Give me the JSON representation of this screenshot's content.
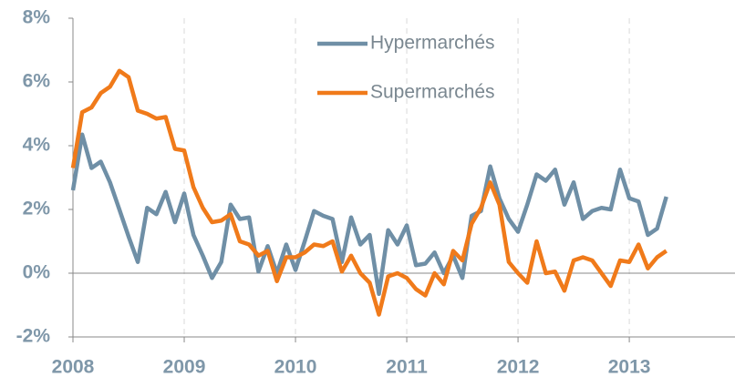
{
  "chart_data": {
    "type": "line",
    "x": [
      2008,
      2008.083,
      2008.167,
      2008.25,
      2008.333,
      2008.417,
      2008.5,
      2008.583,
      2008.667,
      2008.75,
      2008.833,
      2008.917,
      2009,
      2009.083,
      2009.167,
      2009.25,
      2009.333,
      2009.417,
      2009.5,
      2009.583,
      2009.667,
      2009.75,
      2009.833,
      2009.917,
      2010,
      2010.083,
      2010.167,
      2010.25,
      2010.333,
      2010.417,
      2010.5,
      2010.583,
      2010.667,
      2010.75,
      2010.833,
      2010.917,
      2011,
      2011.083,
      2011.167,
      2011.25,
      2011.333,
      2011.417,
      2011.5,
      2011.583,
      2011.667,
      2011.75,
      2011.833,
      2011.917,
      2012,
      2012.083,
      2012.167,
      2012.25,
      2012.333,
      2012.417,
      2012.5,
      2012.583,
      2012.667,
      2012.75,
      2012.833,
      2012.917,
      2013,
      2013.083,
      2013.167,
      2013.25,
      2013.333
    ],
    "series": [
      {
        "name": "Hypermarchés",
        "color": "#6f8fa6",
        "values": [
          2.6,
          4.35,
          3.3,
          3.5,
          2.85,
          2.0,
          1.15,
          0.35,
          2.05,
          1.85,
          2.55,
          1.6,
          2.5,
          1.2,
          0.55,
          -0.15,
          0.35,
          2.15,
          1.7,
          1.75,
          0.05,
          0.85,
          0,
          0.9,
          0.1,
          1.0,
          1.95,
          1.8,
          1.7,
          0.35,
          1.75,
          0.9,
          1.2,
          -0.65,
          1.35,
          0.9,
          1.5,
          0.25,
          0.3,
          0.65,
          0,
          0.55,
          -0.15,
          1.8,
          1.95,
          3.35,
          2.35,
          1.7,
          1.3,
          2.15,
          3.1,
          2.9,
          3.25,
          2.15,
          2.85,
          1.7,
          1.95,
          2.05,
          2.0,
          3.25,
          2.35,
          2.25,
          1.2,
          1.4,
          2.4
        ]
      },
      {
        "name": "Supermarchés",
        "color": "#f07a1a",
        "values": [
          3.3,
          5.05,
          5.2,
          5.65,
          5.85,
          6.35,
          6.15,
          5.1,
          5.0,
          4.85,
          4.9,
          3.9,
          3.85,
          2.7,
          2.05,
          1.6,
          1.65,
          1.85,
          1.0,
          0.9,
          0.55,
          0.7,
          -0.25,
          0.5,
          0.5,
          0.65,
          0.9,
          0.85,
          1.0,
          0.05,
          0.55,
          0,
          -0.3,
          -1.3,
          -0.1,
          0,
          -0.15,
          -0.5,
          -0.7,
          0,
          -0.35,
          0.7,
          0.4,
          1.55,
          2.05,
          2.85,
          2.15,
          0.35,
          0,
          -0.3,
          1.0,
          0,
          0.05,
          -0.55,
          0.4,
          0.5,
          0.4,
          0,
          -0.4,
          0.4,
          0.35,
          0.9,
          0.15,
          0.5,
          0.7
        ]
      }
    ],
    "xlim": [
      2008,
      2013.95
    ],
    "xticks": [
      2008,
      2009,
      2010,
      2011,
      2012,
      2013
    ],
    "ylim": [
      -2,
      8
    ],
    "yticks": [
      {
        "value": -2,
        "label": "-2%"
      },
      {
        "value": 0,
        "label": "0%"
      },
      {
        "value": 2,
        "label": "2%"
      },
      {
        "value": 4,
        "label": "4%"
      },
      {
        "value": 6,
        "label": "6%"
      },
      {
        "value": 8,
        "label": "8%"
      }
    ],
    "grid": true,
    "legend": "upper center"
  }
}
